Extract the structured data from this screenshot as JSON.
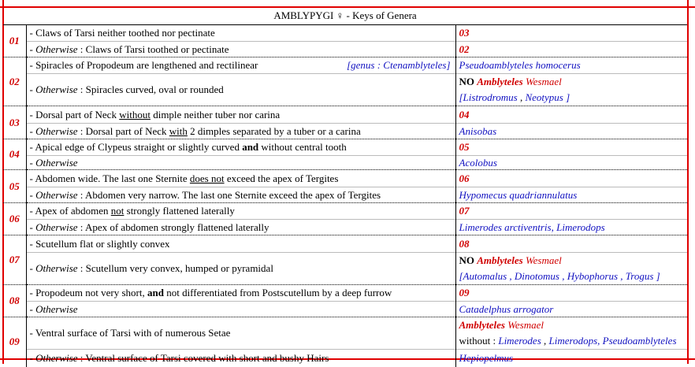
{
  "title": "AMBLYPYGI ♀ - Keys of Genera",
  "keys": [
    {
      "num": "01",
      "rows": [
        {
          "h": 21,
          "left": [
            {
              "t": "- Claws of Tarsi neither toothed nor pectinate"
            }
          ],
          "right": [
            [
              {
                "t": "03",
                "c": "red b i"
              }
            ]
          ]
        },
        {
          "h": 20,
          "left": [
            {
              "t": "- "
            },
            {
              "t": "Otherwise",
              "c": "i"
            },
            {
              "t": "  : Claws of Tarsi toothed or pectinate"
            }
          ],
          "right": [
            [
              {
                "t": "02",
                "c": "red b i"
              }
            ]
          ]
        }
      ]
    },
    {
      "num": "02",
      "rows": [
        {
          "h": 21,
          "left": [
            {
              "t": "- Spiracles of Propodeum are lengthened and rectilinear"
            }
          ],
          "note": "[genus : Ctenamblyteles]",
          "right": [
            [
              {
                "t": "Pseudoamblyteles  homocerus",
                "c": "blue i"
              }
            ]
          ]
        },
        {
          "h": 39,
          "left": [
            {
              "t": "- "
            },
            {
              "t": "Otherwise",
              "c": "i"
            },
            {
              "t": " : Spiracles curved, oval or rounded"
            }
          ],
          "right": [
            [
              {
                "t": "NO ",
                "c": "b"
              },
              {
                "t": "Amblyteles",
                "c": "red b i"
              },
              {
                "t": " Wesmael",
                "c": "red i"
              }
            ],
            [
              {
                "t": "[Listrodromus",
                "c": "blue i"
              },
              {
                "t": " , "
              },
              {
                "t": "Neotypus ]",
                "c": "blue i"
              }
            ]
          ]
        }
      ]
    },
    {
      "num": "03",
      "rows": [
        {
          "h": 22,
          "left": [
            {
              "t": "- Dorsal part of Neck "
            },
            {
              "t": "without",
              "c": "u"
            },
            {
              "t": " dimple neither tuber nor carina"
            }
          ],
          "right": [
            [
              {
                "t": "04",
                "c": "red b i"
              }
            ]
          ]
        },
        {
          "h": 20,
          "left": [
            {
              "t": "- "
            },
            {
              "t": "Otherwise",
              "c": "i"
            },
            {
              "t": "  :  Dorsal part of Neck "
            },
            {
              "t": "with",
              "c": "u"
            },
            {
              "t": " 2 dimples separated by a tuber or a carina"
            }
          ],
          "right": [
            [
              {
                "t": "Anisobas",
                "c": "blue i"
              }
            ]
          ]
        }
      ]
    },
    {
      "num": "04",
      "rows": [
        {
          "h": 21,
          "left": [
            {
              "t": "- Apical edge of Clypeus straight or slightly curved "
            },
            {
              "t": "and",
              "c": "b"
            },
            {
              "t": " without central tooth"
            }
          ],
          "right": [
            [
              {
                "t": "05",
                "c": "red b i"
              }
            ]
          ]
        },
        {
          "h": 18,
          "left": [
            {
              "t": "- "
            },
            {
              "t": "Otherwise",
              "c": "i"
            }
          ],
          "right": [
            [
              {
                "t": "Acolobus",
                "c": "blue i"
              }
            ]
          ]
        }
      ]
    },
    {
      "num": "05",
      "rows": [
        {
          "h": 22,
          "left": [
            {
              "t": "- Abdomen wide. The last one Sternite "
            },
            {
              "t": "does not",
              "c": "u"
            },
            {
              "t": " exceed the apex of Tergites"
            }
          ],
          "right": [
            [
              {
                "t": "06",
                "c": "red b i"
              }
            ]
          ]
        },
        {
          "h": 20,
          "left": [
            {
              "t": "- "
            },
            {
              "t": "Otherwise",
              "c": "i"
            },
            {
              "t": "  : Abdomen very narrow. The last one Sternite exceed the apex of Tergites"
            }
          ],
          "right": [
            [
              {
                "t": "Hypomecus quadriannulatus",
                "c": "blue i"
              }
            ]
          ]
        }
      ]
    },
    {
      "num": "06",
      "rows": [
        {
          "h": 21,
          "left": [
            {
              "t": "- Apex of abdomen "
            },
            {
              "t": "not",
              "c": "u"
            },
            {
              "t": " strongly flattened laterally"
            }
          ],
          "right": [
            [
              {
                "t": "07",
                "c": "red b i"
              }
            ]
          ]
        },
        {
          "h": 20,
          "left": [
            {
              "t": "- "
            },
            {
              "t": "Otherwise",
              "c": "i"
            },
            {
              "t": "  : Apex of abdomen strongly flattened laterally"
            }
          ],
          "right": [
            [
              {
                "t": "Limerodes arctiventris, Limerodops",
                "c": "blue i"
              }
            ]
          ]
        }
      ]
    },
    {
      "num": "07",
      "rows": [
        {
          "h": 22,
          "left": [
            {
              "t": "- Scutellum flat or slightly convex"
            }
          ],
          "right": [
            [
              {
                "t": "08",
                "c": "red b i"
              }
            ]
          ]
        },
        {
          "h": 38,
          "left": [
            {
              "t": "- "
            },
            {
              "t": "Otherwise",
              "c": "i"
            },
            {
              "t": "  : Scutellum very convex, humped or pyramidal"
            }
          ],
          "right": [
            [
              {
                "t": "NO ",
                "c": "b"
              },
              {
                "t": "Amblyteles",
                "c": "red b i"
              },
              {
                "t": " Wesmael",
                "c": "red i"
              }
            ],
            [
              {
                "t": "[Automalus  , Dinotomus  , Hybophorus  , Trogus ]",
                "c": "blue i"
              }
            ]
          ]
        }
      ]
    },
    {
      "num": "08",
      "rows": [
        {
          "h": 21,
          "left": [
            {
              "t": "- Propodeum not very short, "
            },
            {
              "t": "and",
              "c": "b"
            },
            {
              "t": " not differentiated from Postscutellum by a deep furrow"
            }
          ],
          "right": [
            [
              {
                "t": "09",
                "c": "red b i"
              }
            ]
          ]
        },
        {
          "h": 20,
          "left": [
            {
              "t": "- "
            },
            {
              "t": "Otherwise",
              "c": "i"
            }
          ],
          "right": [
            [
              {
                "t": "Catadelphus arrogator",
                "c": "blue i"
              }
            ]
          ]
        }
      ]
    },
    {
      "num": "09",
      "rows": [
        {
          "h": 35,
          "left": [
            {
              "t": "- Ventral surface of Tarsi with of numerous Setae"
            }
          ],
          "right": [
            [
              {
                "t": "Amblyteles",
                "c": "red b i"
              },
              {
                "t": " Wesmael",
                "c": "red i"
              }
            ],
            [
              {
                "t": " without : "
              },
              {
                "t": "Limerodes",
                "c": "blue i"
              },
              {
                "t": " , "
              },
              {
                "t": "Limerodops, Pseudoamblyteles",
                "c": "blue i"
              }
            ]
          ]
        },
        {
          "h": 22,
          "left": [
            {
              "t": "- "
            },
            {
              "t": "Otherwise",
              "c": "i"
            },
            {
              "t": "  : Ventral surface of Tarsi covered with short and bushy Hairs"
            }
          ],
          "right": [
            [
              {
                "t": "Hepiopelmus",
                "c": "blue i"
              }
            ]
          ]
        }
      ]
    }
  ]
}
